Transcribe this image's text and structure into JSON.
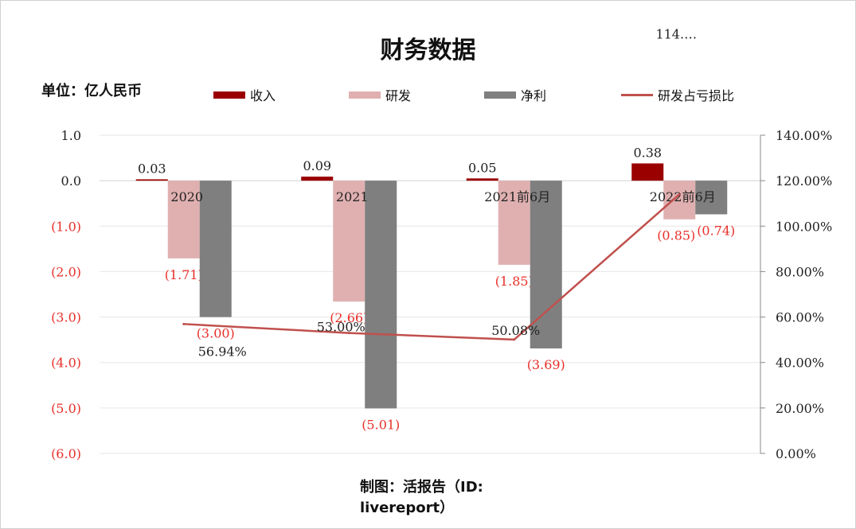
{
  "chart_data": {
    "type": "bar",
    "title": "财务数据",
    "unit_label": "单位：亿人民币",
    "credit": [
      "制图：活报告（ID:",
      "livereport）"
    ],
    "categories": [
      "2020",
      "2021",
      "2021前6月",
      "2022前6月"
    ],
    "series": [
      {
        "name": "收入",
        "type": "bar",
        "color": "#9b0000",
        "values": [
          0.03,
          0.09,
          0.05,
          0.38
        ],
        "labels": [
          "0.03",
          "0.09",
          "0.05",
          "0.38"
        ]
      },
      {
        "name": "研发",
        "type": "bar",
        "color": "#e0b0b0",
        "values": [
          -1.71,
          -2.66,
          -1.85,
          -0.85
        ],
        "labels": [
          "(1.71)",
          "(2.66)",
          "(1.85)",
          "(0.85)"
        ]
      },
      {
        "name": "净利",
        "type": "bar",
        "color": "#7f7f7f",
        "values": [
          -3.0,
          -5.01,
          -3.69,
          -0.74
        ],
        "labels": [
          "(3.00)",
          "(5.01)",
          "(3.69)",
          "(0.74)"
        ]
      },
      {
        "name": "研发占亏损比",
        "type": "line",
        "axis": "right",
        "color": "#c0504d",
        "values": [
          56.94,
          53.0,
          50.08,
          114.0
        ],
        "labels": [
          "56.94%",
          "53.00%",
          "50.08%",
          "114.…"
        ]
      }
    ],
    "y_left": {
      "min": -6.0,
      "max": 1.0,
      "ticks": [
        "1.0",
        "0.0",
        "(1.0)",
        "(2.0)",
        "(3.0)",
        "(4.0)",
        "(5.0)",
        "(6.0)"
      ],
      "tick_values": [
        1,
        0,
        -1,
        -2,
        -3,
        -4,
        -5,
        -6
      ]
    },
    "y_right": {
      "min": 0,
      "max": 140,
      "ticks": [
        "140.00%",
        "120.00%",
        "100.00%",
        "80.00%",
        "60.00%",
        "40.00%",
        "20.00%",
        "0.00%"
      ],
      "tick_values": [
        140,
        120,
        100,
        80,
        60,
        40,
        20,
        0
      ]
    },
    "grid": true,
    "legend_position": "top",
    "negative_label_color": "#e8302a"
  }
}
